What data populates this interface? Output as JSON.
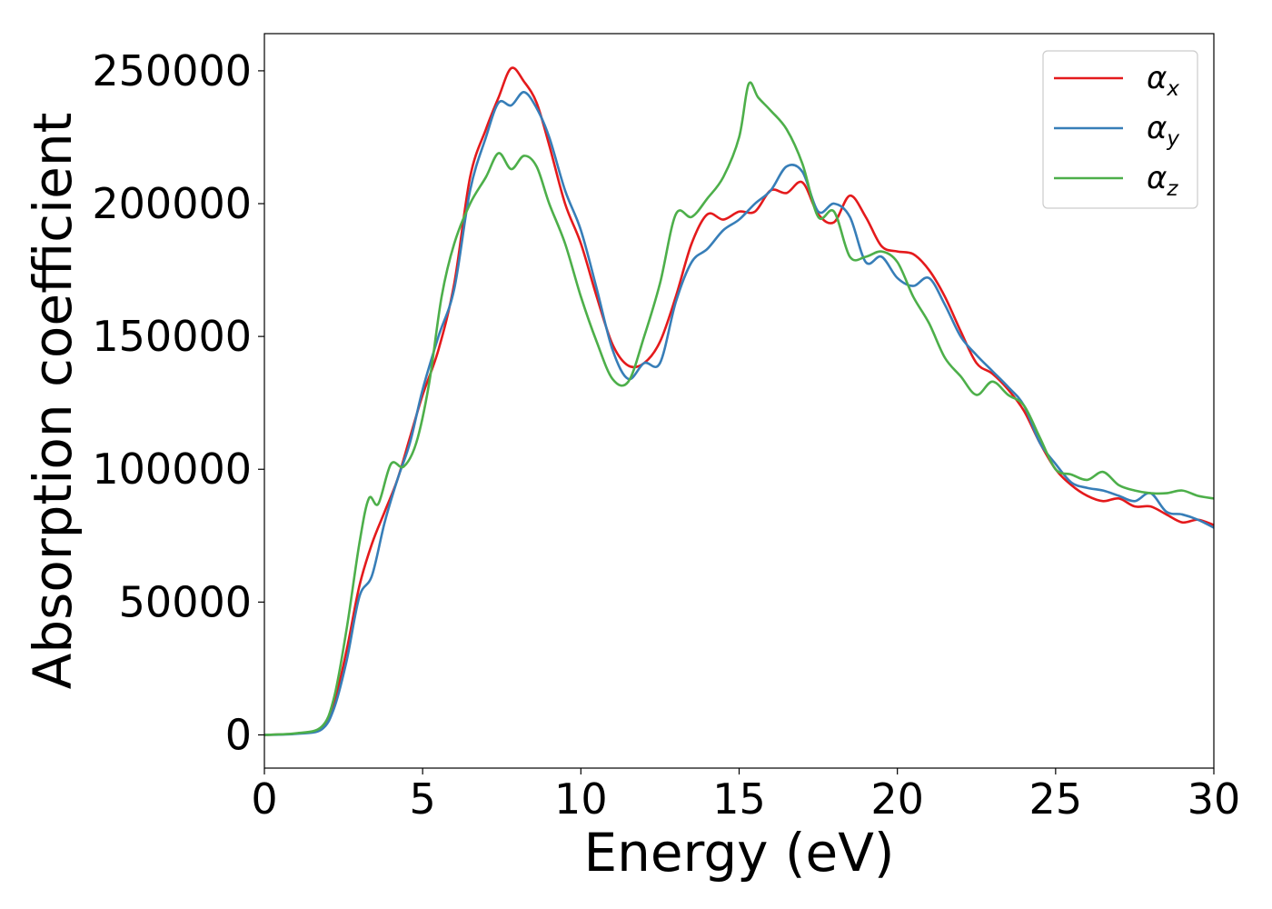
{
  "chart_data": {
    "type": "line",
    "xlabel": "Energy (eV)",
    "ylabel": "Absorption coefficient",
    "xlim": [
      0,
      30
    ],
    "ylim": [
      -12500,
      264000
    ],
    "xticks": [
      0,
      5,
      10,
      15,
      20,
      25,
      30
    ],
    "xtick_labels": [
      "0",
      "5",
      "10",
      "15",
      "20",
      "25",
      "30"
    ],
    "yticks": [
      0,
      50000,
      100000,
      150000,
      200000,
      250000
    ],
    "ytick_labels": [
      "0",
      "50000",
      "100000",
      "150000",
      "200000",
      "250000"
    ],
    "grid": false,
    "legend_position": "upper right",
    "series": [
      {
        "name": "αx",
        "name_base": "α",
        "name_sub": "x",
        "color": "#e41a1c",
        "x": [
          0,
          1,
          1.8,
          2.2,
          2.6,
          3.0,
          3.4,
          3.8,
          4.2,
          4.6,
          5.0,
          5.5,
          6.0,
          6.5,
          7.0,
          7.4,
          7.8,
          8.2,
          8.6,
          9.0,
          9.5,
          10.0,
          10.5,
          11.0,
          11.5,
          12.0,
          12.5,
          13.0,
          13.5,
          14.0,
          14.5,
          15.0,
          15.5,
          16.0,
          16.5,
          17.0,
          17.5,
          18.0,
          18.5,
          19.0,
          19.5,
          20.0,
          20.5,
          21.0,
          21.5,
          22.0,
          22.5,
          23.0,
          23.5,
          24.0,
          24.5,
          25.0,
          25.5,
          26.0,
          26.5,
          27.0,
          27.5,
          28.0,
          28.5,
          29.0,
          29.5,
          30.0
        ],
        "y": [
          0,
          500,
          2500,
          12000,
          32000,
          56000,
          72000,
          84000,
          96000,
          112000,
          128000,
          145000,
          170000,
          210000,
          228000,
          240000,
          251000,
          246000,
          238000,
          222000,
          200000,
          185000,
          165000,
          147000,
          139000,
          140000,
          148000,
          165000,
          185000,
          196000,
          194000,
          197000,
          197000,
          205000,
          204000,
          208000,
          196000,
          193000,
          203000,
          195000,
          184000,
          182000,
          181000,
          175000,
          165000,
          152000,
          140000,
          136000,
          130000,
          122000,
          110000,
          100000,
          94000,
          90000,
          88000,
          89000,
          86000,
          86000,
          83000,
          80000,
          81000,
          79000
        ]
      },
      {
        "name": "αy",
        "name_base": "α",
        "name_sub": "y",
        "color": "#377eb8",
        "x": [
          0,
          1,
          1.8,
          2.2,
          2.6,
          3.0,
          3.4,
          3.8,
          4.2,
          4.6,
          5.0,
          5.5,
          6.0,
          6.5,
          7.0,
          7.4,
          7.8,
          8.2,
          8.6,
          9.0,
          9.5,
          10.0,
          10.5,
          11.0,
          11.5,
          12.0,
          12.5,
          13.0,
          13.5,
          14.0,
          14.5,
          15.0,
          15.5,
          16.0,
          16.5,
          17.0,
          17.5,
          18.0,
          18.5,
          19.0,
          19.5,
          20.0,
          20.5,
          21.0,
          21.5,
          22.0,
          22.5,
          23.0,
          23.5,
          24.0,
          24.5,
          25.0,
          25.5,
          26.0,
          26.5,
          27.0,
          27.5,
          28.0,
          28.5,
          29.0,
          29.5,
          30.0
        ],
        "y": [
          0,
          400,
          2000,
          10000,
          28000,
          52000,
          60000,
          80000,
          96000,
          110000,
          130000,
          150000,
          168000,
          205000,
          225000,
          238000,
          237000,
          242000,
          236000,
          225000,
          205000,
          190000,
          168000,
          145000,
          134000,
          140000,
          140000,
          163000,
          178000,
          183000,
          190000,
          194000,
          200000,
          205000,
          214000,
          212000,
          197000,
          200000,
          195000,
          178000,
          180000,
          172000,
          169000,
          172000,
          162000,
          150000,
          143000,
          137000,
          131000,
          124000,
          110000,
          102000,
          95000,
          93000,
          92000,
          90000,
          88000,
          91000,
          84000,
          83000,
          81000,
          78000
        ]
      },
      {
        "name": "αz",
        "name_base": "α",
        "name_sub": "z",
        "color": "#4daf4a",
        "x": [
          0,
          1,
          1.8,
          2.2,
          2.6,
          3.0,
          3.3,
          3.6,
          4.0,
          4.4,
          4.8,
          5.2,
          5.6,
          6.0,
          6.5,
          7.0,
          7.4,
          7.8,
          8.2,
          8.6,
          9.0,
          9.5,
          10.0,
          10.5,
          11.0,
          11.5,
          12.0,
          12.5,
          13.0,
          13.5,
          14.0,
          14.5,
          15.0,
          15.3,
          15.6,
          16.0,
          16.5,
          17.0,
          17.5,
          18.0,
          18.5,
          19.0,
          19.5,
          20.0,
          20.5,
          21.0,
          21.5,
          22.0,
          22.5,
          23.0,
          23.5,
          24.0,
          24.5,
          25.0,
          25.5,
          26.0,
          26.5,
          27.0,
          27.5,
          28.0,
          28.5,
          29.0,
          29.5,
          30.0
        ],
        "y": [
          0,
          600,
          3000,
          14000,
          40000,
          72000,
          89000,
          87000,
          102000,
          101000,
          110000,
          132000,
          165000,
          185000,
          200000,
          210000,
          219000,
          213000,
          218000,
          214000,
          200000,
          185000,
          165000,
          148000,
          134000,
          133000,
          150000,
          170000,
          196000,
          195000,
          202000,
          210000,
          225000,
          245000,
          240000,
          235000,
          228000,
          215000,
          195000,
          197000,
          180000,
          180000,
          182000,
          178000,
          165000,
          155000,
          142000,
          135000,
          128000,
          133000,
          128000,
          124000,
          112000,
          100000,
          98000,
          96000,
          99000,
          94000,
          92000,
          91000,
          91000,
          92000,
          90000,
          89000
        ]
      }
    ]
  }
}
